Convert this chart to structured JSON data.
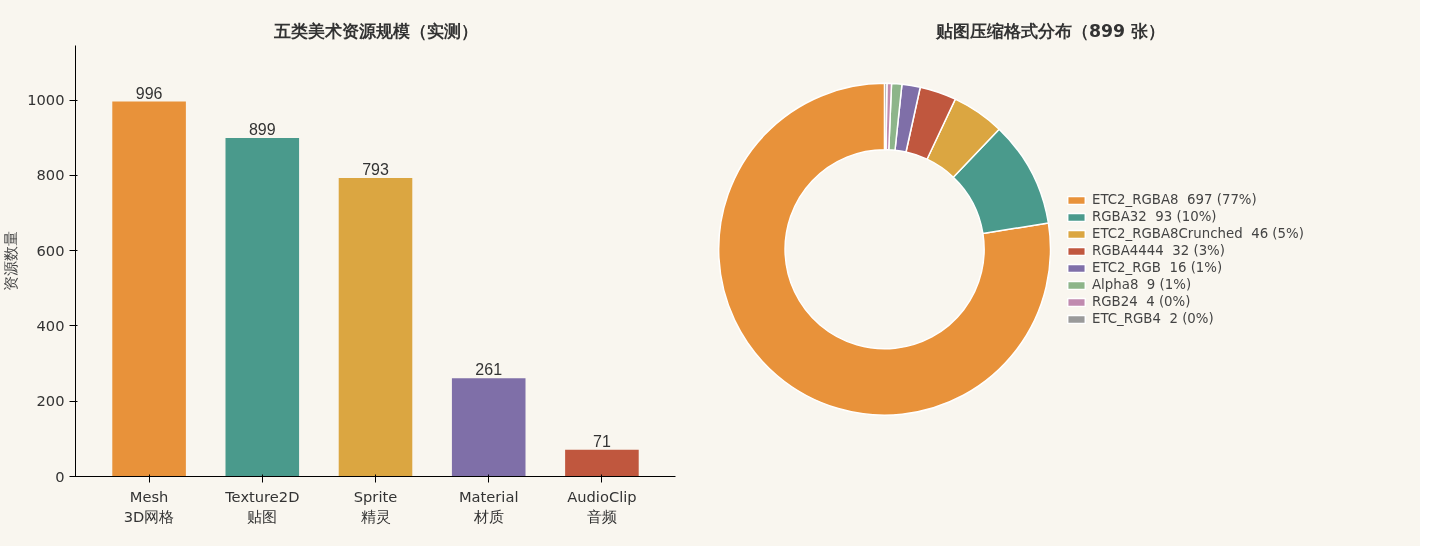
{
  "chart_data": [
    {
      "type": "bar",
      "title": "五类美术资源规模（实测）",
      "ylabel": "资源数量",
      "categories": [
        "Mesh\n3D网格",
        "Texture2D\n贴图",
        "Sprite\n精灵",
        "Material\n材质",
        "AudioClip\n音频"
      ],
      "values": [
        996,
        899,
        793,
        261,
        71
      ],
      "colors": [
        "#e8923a",
        "#4a9a8c",
        "#dba641",
        "#7f6fa8",
        "#c0573e"
      ],
      "ylim": [
        0,
        1145
      ],
      "yticks": [
        0,
        200,
        400,
        600,
        800,
        1000
      ],
      "data_labels": true,
      "grid": false
    },
    {
      "type": "donut",
      "title": "贴图压缩格式分布（899 张）",
      "categories": [
        "ETC2_RGBA8  697 (77%)",
        "RGBA32  93 (10%)",
        "ETC2_RGBA8Crunched  46 (5%)",
        "RGBA4444  32 (3%)",
        "ETC2_RGB  16 (1%)",
        "Alpha8  9 (1%)",
        "RGB24  4 (0%)",
        "ETC_RGB4  2 (0%)"
      ],
      "values": [
        697,
        93,
        46,
        32,
        16,
        9,
        4,
        2
      ],
      "colors": [
        "#e8923a",
        "#4a9a8c",
        "#dba641",
        "#c0573e",
        "#7f6fa8",
        "#8db58a",
        "#c08aaf",
        "#9a9a9a"
      ],
      "legend": "right"
    }
  ]
}
